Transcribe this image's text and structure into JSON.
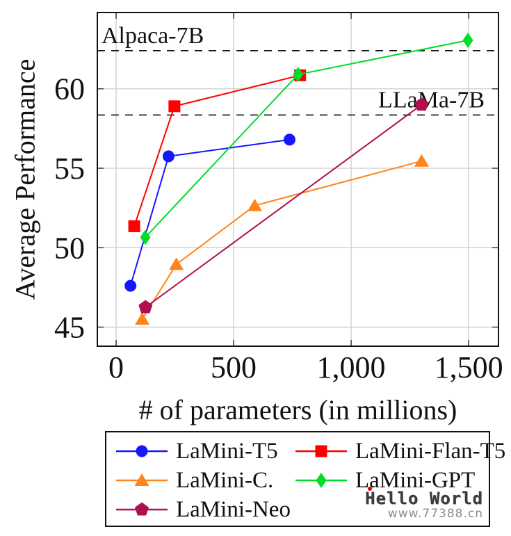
{
  "chart_data": {
    "type": "line",
    "title": "",
    "xlabel": "# of parameters (in millions)",
    "ylabel": "Average Performance",
    "xlim": [
      -80,
      1627
    ],
    "ylim": [
      43.8,
      64.8
    ],
    "xticks": [
      0,
      500,
      1000,
      1500
    ],
    "xtick_labels": [
      "0",
      "500",
      "1,000",
      "1,500"
    ],
    "yticks": [
      45,
      50,
      55,
      60
    ],
    "ytick_labels": [
      "45",
      "50",
      "55",
      "60"
    ],
    "grid": true,
    "grid_color": "#cdcdcd",
    "axis_color": "#111111",
    "legend_position": "below",
    "legend_columns": 2,
    "reference_lines": [
      {
        "label": "Alpaca-7B",
        "y": 62.4,
        "style": "dashed",
        "color": "#111111",
        "label_align": "left"
      },
      {
        "label": "LLaMa-7B",
        "y": 58.35,
        "style": "dashed",
        "color": "#111111",
        "label_align": "right"
      }
    ],
    "series": [
      {
        "name": "LaMini-T5",
        "color": "#1616ff",
        "marker": "circle",
        "points": [
          [
            61,
            47.6
          ],
          [
            223,
            55.75
          ],
          [
            738,
            56.8
          ]
        ]
      },
      {
        "name": "LaMini-Flan-T5",
        "color": "#fe0000",
        "marker": "square",
        "points": [
          [
            77,
            51.35
          ],
          [
            248,
            58.9
          ],
          [
            783,
            60.85
          ]
        ]
      },
      {
        "name": "LaMini-C.",
        "color": "#ff8419",
        "marker": "triangle",
        "points": [
          [
            111,
            45.5
          ],
          [
            256,
            48.95
          ],
          [
            590,
            52.65
          ],
          [
            1300,
            55.45
          ]
        ]
      },
      {
        "name": "LaMini-GPT",
        "color": "#00dc28",
        "marker": "diamond",
        "points": [
          [
            124,
            50.65
          ],
          [
            774,
            60.9
          ],
          [
            1497,
            63.05
          ]
        ]
      },
      {
        "name": "LaMini-Neo",
        "color": "#b00e50",
        "marker": "pentagon",
        "points": [
          [
            125,
            46.25
          ],
          [
            1300,
            59.0
          ]
        ]
      }
    ]
  },
  "watermark": {
    "line1": "Hello World",
    "line2": "www.77388.cn",
    "dot_color": "#e00000"
  }
}
